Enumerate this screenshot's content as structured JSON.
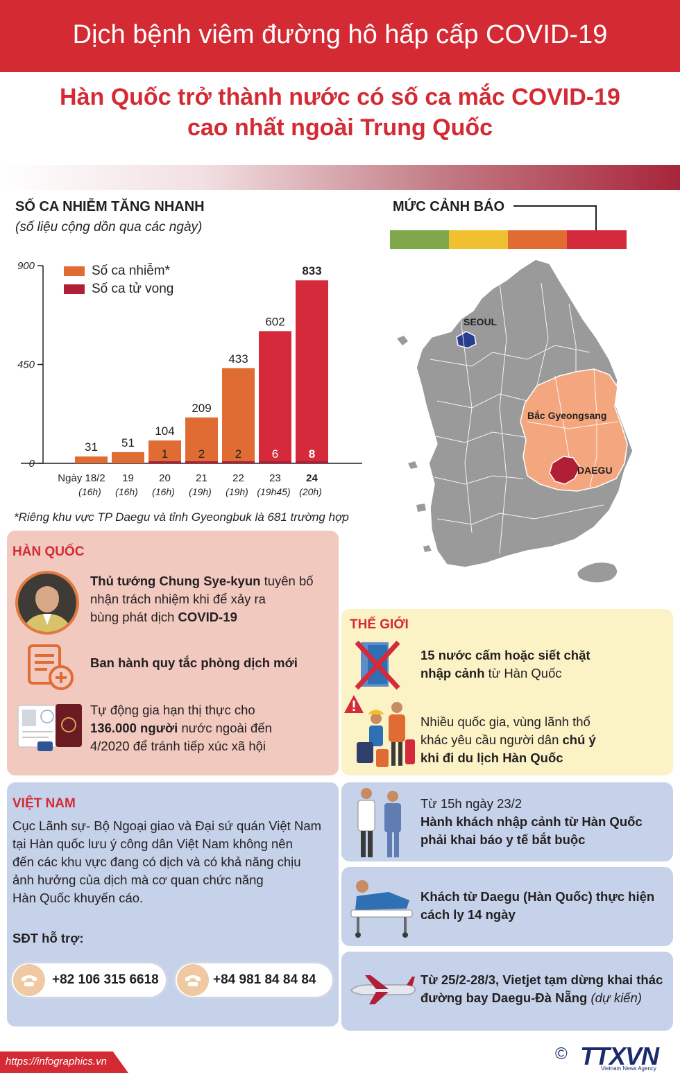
{
  "header": {
    "title": "Dịch bệnh viêm đường hô hấp cấp COVID-19"
  },
  "headline": {
    "line1": "Hàn Quốc trở thành nước có số ca mắc COVID-19",
    "line2": "cao nhất ngoài Trung Quốc"
  },
  "chart_section": {
    "title": "SỐ CA NHIỄM TĂNG NHANH",
    "subtitle": "(số liệu cộng dồn qua các ngày)",
    "note": "*Riêng khu vực TP Daegu và tỉnh Gyeongbuk là 681 trường hợp"
  },
  "chart_data": {
    "type": "bar",
    "ylim": [
      0,
      900
    ],
    "yticks": [
      "900",
      "450",
      "0"
    ],
    "categories": [
      {
        "day": "Ngày 18/2",
        "time": "(16h)"
      },
      {
        "day": "19",
        "time": "(16h)"
      },
      {
        "day": "20",
        "time": "(16h)"
      },
      {
        "day": "21",
        "time": "(19h)"
      },
      {
        "day": "22",
        "time": "(19h)"
      },
      {
        "day": "23",
        "time": "(19h45)"
      },
      {
        "day": "24",
        "time": "(20h)"
      }
    ],
    "series": [
      {
        "name": "Số ca nhiễm*",
        "values": [
          31,
          51,
          104,
          209,
          433,
          602,
          833
        ],
        "labels": [
          "31",
          "51",
          "104",
          "209",
          "433",
          "602",
          "833"
        ]
      },
      {
        "name": "Số ca tử vong",
        "values": [
          0,
          0,
          1,
          2,
          2,
          6,
          8
        ],
        "labels": [
          "",
          "",
          "1",
          "2",
          "2",
          "6",
          "8"
        ]
      }
    ],
    "colors": {
      "infected": "#e06c33",
      "infected_latest": "#d42a3c",
      "deaths": "#b01f36"
    }
  },
  "warning": {
    "title": "MỨC CẢNH BÁO",
    "colors": [
      "#7fa84a",
      "#f1c030",
      "#e06c33",
      "#d42a3c"
    ]
  },
  "map": {
    "labels": {
      "seoul": "SEOUL",
      "gyeongsang": "Bắc Gyeongsang",
      "daegu": "DAEGU"
    },
    "colors": {
      "land": "#9a9a9b",
      "province": "#f4a77e",
      "daegu": "#b01f36",
      "seoul": "#2a3d8f"
    }
  },
  "korea_card": {
    "title": "HÀN QUỐC",
    "item1": {
      "bold": "Thủ tướng Chung Sye-kyun",
      "line1_rest": " tuyên bố",
      "line2": "nhận trách nhiệm khi để xảy ra",
      "line3_pre": "bùng phát dịch ",
      "line3_bold": "COVID-19"
    },
    "item2": "Ban hành quy tắc phòng dịch mới",
    "item3": {
      "line1": "Tự động gia hạn thị thực cho",
      "line2_bold": "136.000 người",
      "line2_rest": " nước ngoài đến",
      "line3": "4/2020 để tránh tiếp xúc xã hội"
    }
  },
  "world_card": {
    "title": "THẾ GIỚI",
    "item1": {
      "line1": "15 nước cấm hoặc siết chặt",
      "line2_bold": "nhập cảnh",
      "line2_rest": " từ Hàn Quốc"
    },
    "item2": {
      "line1": "Nhiều quốc gia, vùng lãnh thổ",
      "line2_pre": "khác yêu cầu người dân ",
      "line2_bold": "chú ý",
      "line3": "khi đi du lịch Hàn Quốc"
    }
  },
  "vietnam_card": {
    "title": "VIỆT NAM",
    "lines": [
      "Cục Lãnh sự- Bộ Ngoại giao và Đại sứ quán Việt Nam",
      "tại Hàn quốc lưu ý công dân Việt Nam không nên",
      "đến các khu vực đang có dịch và có khả năng chịu",
      "ảnh hưởng của dịch mà cơ quan chức năng",
      "Hàn Quốc khuyến cáo."
    ],
    "hotline_label": "SĐT hỗ trợ:",
    "phone1": "+82 106 315 6618",
    "phone2": "+84 981 84 84 84"
  },
  "measures": {
    "m1": {
      "line1": "Từ 15h ngày 23/2",
      "line2": "Hành khách nhập cảnh từ Hàn Quốc",
      "line3": "phải khai báo y tế bắt buộc"
    },
    "m2": {
      "line1": "Khách từ Daegu (Hàn Quốc) thực hiện",
      "line2": "cách ly 14 ngày"
    },
    "m3": {
      "line1": "Từ 25/2-28/3, Vietjet tạm dừng khai thác",
      "line2": "đường bay Daegu-Đà Nẵng",
      "line2_italic": " (dự kiến)"
    }
  },
  "footer": {
    "url": "https://infographics.vn",
    "copyright": "©",
    "logo": "TTXVN",
    "logo_sub": "Vietnam News Agency"
  }
}
